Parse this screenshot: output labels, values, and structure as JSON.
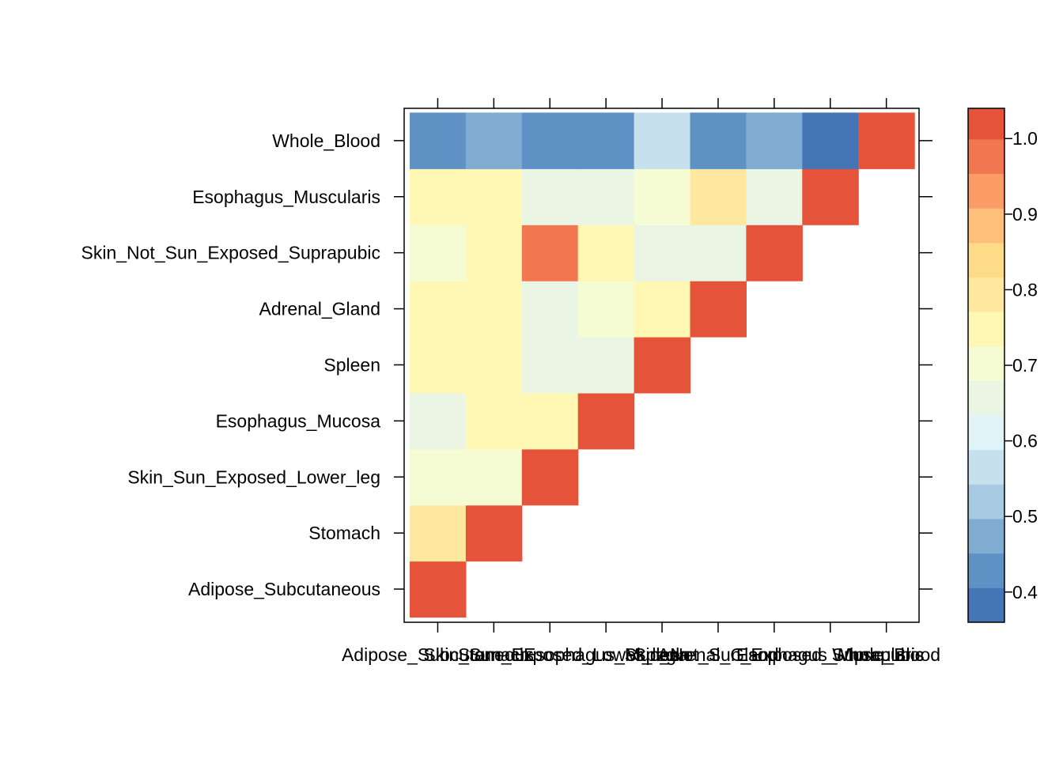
{
  "chart_data": {
    "type": "heatmap",
    "title": "",
    "xlabel": "",
    "ylabel": "",
    "x_categories": [
      "Adipose_Subcutaneous",
      "Stomach",
      "Skin_Sun_Exposed_Lower_leg",
      "Esophagus_Mucosa",
      "Spleen",
      "Adrenal_Gland",
      "Skin_Not_Sun_Exposed_Suprapubic",
      "Esophagus_Muscularis",
      "Whole_Blood"
    ],
    "y_categories": [
      "Adipose_Subcutaneous",
      "Stomach",
      "Skin_Sun_Exposed_Lower_leg",
      "Esophagus_Mucosa",
      "Spleen",
      "Adrenal_Gland",
      "Skin_Not_Sun_Exposed_Suprapubic",
      "Esophagus_Muscularis",
      "Whole_Blood"
    ],
    "values": [
      [
        1.0,
        null,
        null,
        null,
        null,
        null,
        null,
        null,
        null
      ],
      [
        0.78,
        1.0,
        null,
        null,
        null,
        null,
        null,
        null,
        null
      ],
      [
        0.69,
        0.69,
        1.0,
        null,
        null,
        null,
        null,
        null,
        null
      ],
      [
        0.66,
        0.73,
        0.73,
        1.0,
        null,
        null,
        null,
        null,
        null
      ],
      [
        0.73,
        0.73,
        0.66,
        0.66,
        1.0,
        null,
        null,
        null,
        null
      ],
      [
        0.73,
        0.77,
        0.66,
        0.69,
        0.74,
        1.0,
        null,
        null,
        null
      ],
      [
        0.69,
        0.73,
        0.97,
        0.77,
        0.66,
        0.66,
        1.0,
        null,
        null
      ],
      [
        0.77,
        0.77,
        0.66,
        0.66,
        0.69,
        0.79,
        0.66,
        1.0,
        null
      ],
      [
        0.43,
        0.48,
        0.43,
        0.43,
        0.55,
        0.43,
        0.48,
        0.39,
        1.0
      ]
    ],
    "colorbar": {
      "ticks": [
        0.4,
        0.5,
        0.6,
        0.7,
        0.8,
        0.9,
        1.0
      ],
      "tick_labels": [
        "0.4",
        "0.5",
        "0.6",
        "0.7",
        "0.8",
        "0.9",
        "1.0"
      ],
      "range": [
        0.36,
        1.04
      ],
      "breaks": [
        0.36,
        0.4057,
        0.4513,
        0.497,
        0.5427,
        0.5883,
        0.634,
        0.6797,
        0.7253,
        0.771,
        0.8167,
        0.8623,
        0.908,
        0.9537,
        0.9993,
        1.04
      ],
      "colors": [
        "#4575B4",
        "#6091C4",
        "#80ACD1",
        "#A5CAE1",
        "#C6E0ED",
        "#E0F3F8",
        "#EBF5E4",
        "#F5FBD2",
        "#FFF7B3",
        "#FEE8A0",
        "#FEDB87",
        "#FDBF7A",
        "#FB9B65",
        "#F27751",
        "#E5533A",
        "#D73027"
      ]
    },
    "legend": "right"
  }
}
